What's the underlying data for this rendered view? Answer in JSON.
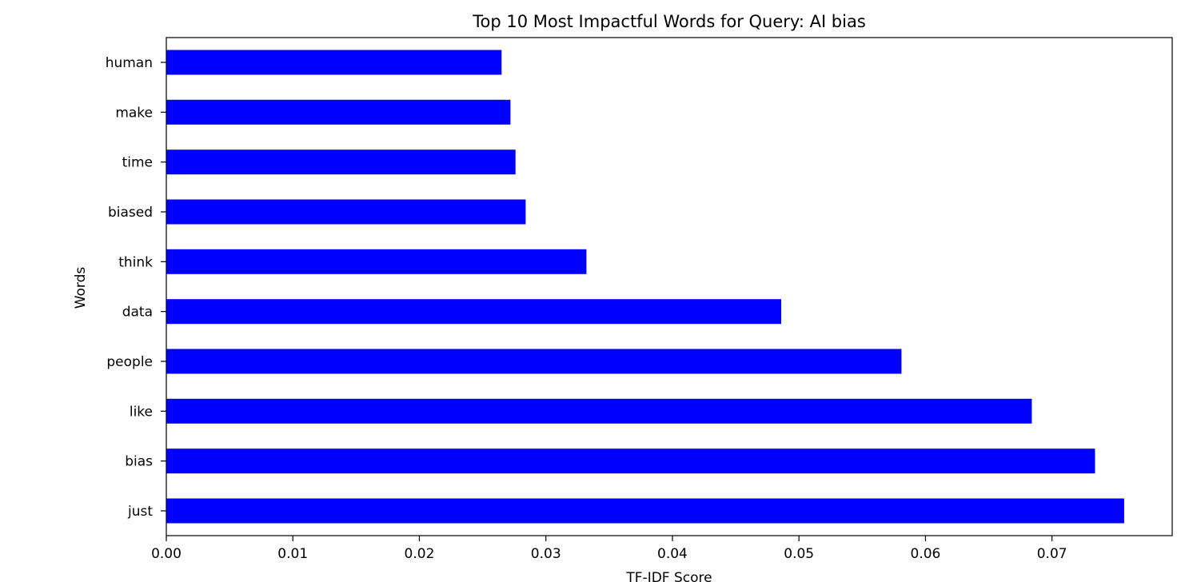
{
  "chart_data": {
    "type": "bar",
    "orientation": "horizontal",
    "title": "Top 10 Most Impactful Words for Query: AI bias",
    "xlabel": "TF-IDF Score",
    "ylabel": "Words",
    "categories": [
      "just",
      "bias",
      "like",
      "people",
      "data",
      "think",
      "biased",
      "time",
      "make",
      "human"
    ],
    "values": [
      0.0757,
      0.0734,
      0.0684,
      0.0581,
      0.0486,
      0.0332,
      0.0284,
      0.0276,
      0.0272,
      0.0265
    ],
    "xlim": [
      0.0,
      0.0795
    ],
    "xticks": [
      0.0,
      0.01,
      0.02,
      0.03,
      0.04,
      0.05,
      0.06,
      0.07
    ],
    "xtick_labels": [
      "0.00",
      "0.01",
      "0.02",
      "0.03",
      "0.04",
      "0.05",
      "0.06",
      "0.07"
    ],
    "grid": false,
    "legend": "none",
    "bar_color": "#0000ff"
  }
}
